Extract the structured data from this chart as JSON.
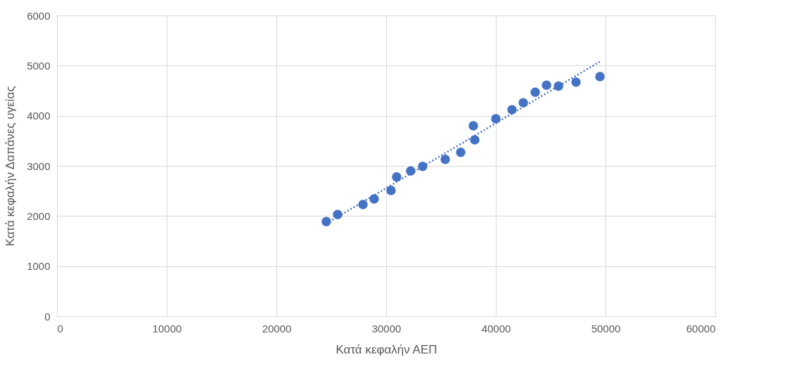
{
  "chart_data": {
    "type": "scatter",
    "xlabel": "Κατά κεφαλήν ΑΕΠ",
    "ylabel": "Κατά κεφαλήν Δαπάνες υγείας",
    "xlim": [
      0,
      60000
    ],
    "xticks": [
      0,
      10000,
      20000,
      30000,
      40000,
      50000,
      60000
    ],
    "ylim": [
      0,
      6000
    ],
    "yticks": [
      0,
      1000,
      2000,
      3000,
      4000,
      5000,
      6000
    ],
    "grid": true,
    "series": [
      {
        "color": "#4472c4",
        "marker": "circle",
        "x": [
          24550,
          25580,
          27890,
          28910,
          30450,
          30960,
          32240,
          33330,
          35390,
          36800,
          37950,
          38080,
          40000,
          41470,
          42500,
          43590,
          44620,
          45710,
          47310,
          49490
        ],
        "values": [
          1890,
          2030,
          2230,
          2340,
          2510,
          2780,
          2900,
          2990,
          3130,
          3270,
          3800,
          3520,
          3940,
          4120,
          4260,
          4470,
          4610,
          4590,
          4670,
          4780
        ]
      },
      {
        "type": "line",
        "color": "#4472c4",
        "line_style": "dotted",
        "x": [
          24550,
          49490
        ],
        "values": [
          1850,
          5080
        ]
      }
    ]
  }
}
